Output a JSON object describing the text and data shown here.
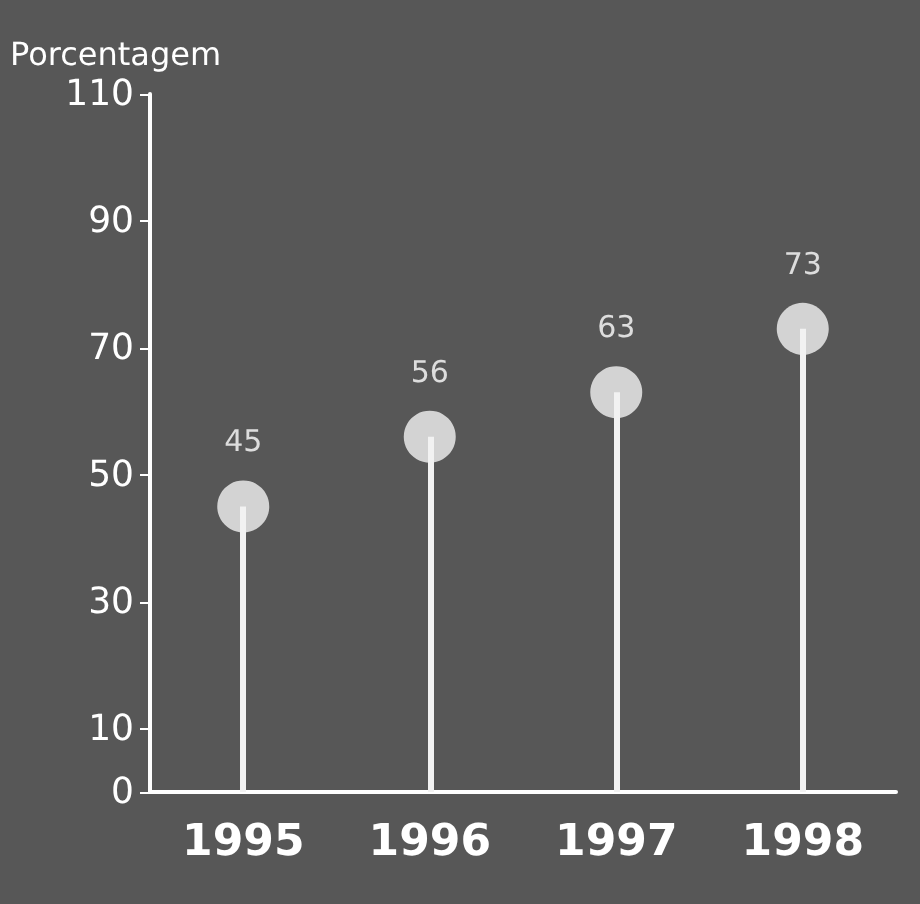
{
  "chart_data": {
    "type": "lollipop",
    "ylabel": "Porcentagem",
    "categories": [
      "1995",
      "1996",
      "1997",
      "1998"
    ],
    "values": [
      45,
      56,
      63,
      73
    ],
    "color": "#f2f2f2",
    "ylim": [
      0,
      110
    ],
    "yticks": [
      0,
      10,
      30,
      50,
      70,
      90,
      110
    ],
    "data_labels": true,
    "grid": false
  }
}
